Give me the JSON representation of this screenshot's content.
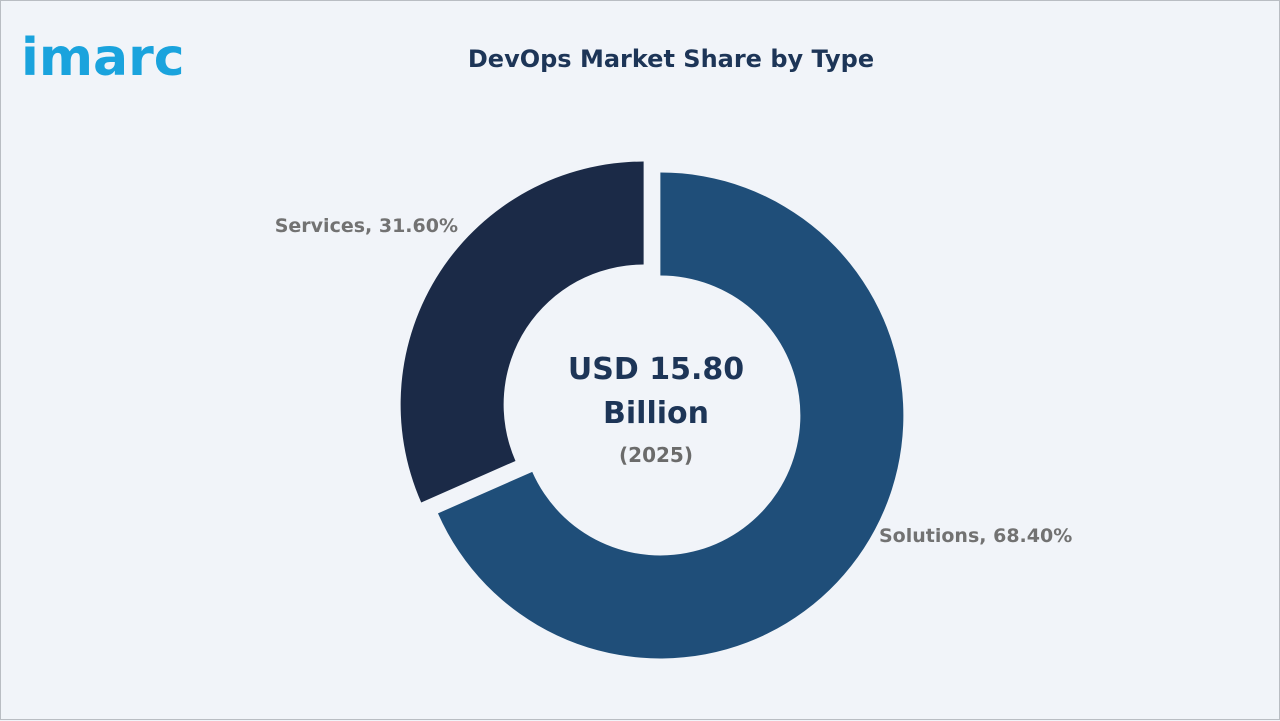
{
  "brand": {
    "logo_text": "imarc",
    "logo_color": "#1aa3dd"
  },
  "chart_data": {
    "type": "pie",
    "title": "DevOps Market Share by Type",
    "center": {
      "value_line1": "USD 15.80",
      "value_line2": "Billion",
      "year": "(2025)"
    },
    "slices": [
      {
        "name": "Solutions",
        "value": 68.4,
        "label": "Solutions, 68.40%",
        "color": "#1f4e79"
      },
      {
        "name": "Services",
        "value": 31.6,
        "label": "Services, 31.60%",
        "color": "#1b2a47"
      }
    ]
  }
}
